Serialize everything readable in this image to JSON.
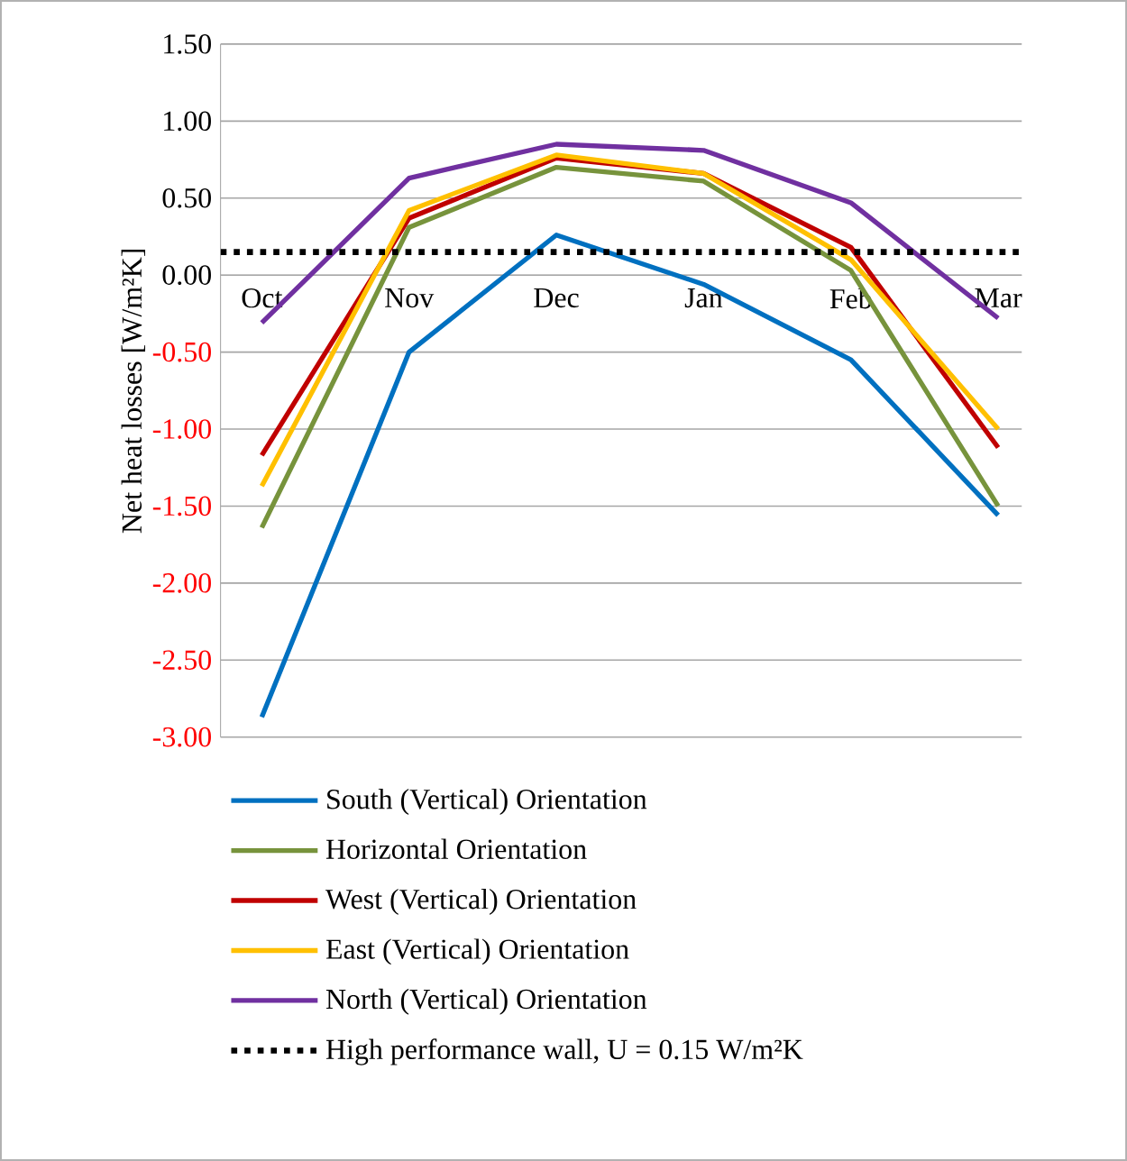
{
  "chart_data": {
    "type": "line",
    "ylabel": "Net heat losses [W/m²K]",
    "categories": [
      "Oct",
      "Nov",
      "Dec",
      "Jan",
      "Feb",
      "Mar"
    ],
    "series": [
      {
        "name": "South (Vertical) Orientation",
        "color": "#0070c0",
        "values": [
          -2.87,
          -0.5,
          0.26,
          -0.06,
          -0.55,
          -1.56
        ]
      },
      {
        "name": "Horizontal Orientation",
        "color": "#77933c",
        "values": [
          -1.64,
          0.31,
          0.7,
          0.61,
          0.03,
          -1.5
        ]
      },
      {
        "name": "West (Vertical) Orientation",
        "color": "#c00000",
        "values": [
          -1.17,
          0.37,
          0.76,
          0.66,
          0.18,
          -1.12
        ]
      },
      {
        "name": "East (Vertical) Orientation",
        "color": "#ffc000",
        "values": [
          -1.37,
          0.42,
          0.78,
          0.66,
          0.1,
          -1.0
        ]
      },
      {
        "name": "North (Vertical) Orientation",
        "color": "#7030a0",
        "values": [
          -0.31,
          0.63,
          0.85,
          0.81,
          0.47,
          -0.28
        ]
      }
    ],
    "ylim": [
      -3,
      1.5
    ],
    "yticks": [
      {
        "value": -3,
        "label": "-3.00"
      },
      {
        "value": -2.5,
        "label": "-2.50"
      },
      {
        "value": -2,
        "label": "-2.00"
      },
      {
        "value": -1.5,
        "label": "-1.50"
      },
      {
        "value": -1,
        "label": "-1.00"
      },
      {
        "value": -0.5,
        "label": "-0.50"
      },
      {
        "value": 0,
        "label": "0.00"
      },
      {
        "value": 0.5,
        "label": "0.50"
      },
      {
        "value": 1,
        "label": "1.00"
      },
      {
        "value": 1.5,
        "label": "1.50"
      }
    ],
    "ref_lines": [
      {
        "axis": "y",
        "value": 0.15,
        "label": "High performance wall, U = 0.15 W/m²K",
        "color": "#000000",
        "line_style": "dotted"
      }
    ],
    "grid": "y",
    "legend": "bottom",
    "marker": "none",
    "line_style": "solid"
  }
}
